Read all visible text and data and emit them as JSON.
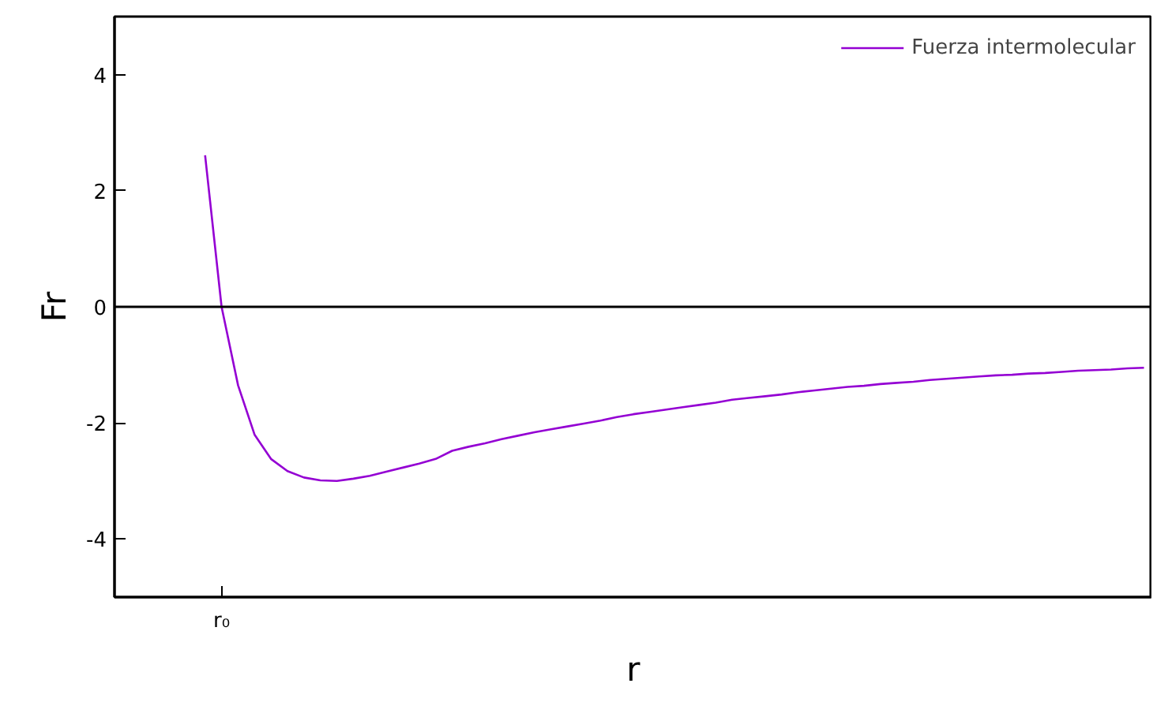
{
  "chart_data": {
    "type": "line",
    "xlabel": "r",
    "ylabel": "Fr",
    "categories": [
      null,
      null,
      null,
      null,
      null,
      null,
      "r₀",
      null,
      null,
      null,
      null,
      null,
      null,
      null,
      null,
      null,
      null,
      null,
      null,
      null,
      null,
      null,
      null,
      null,
      null,
      null,
      null,
      null,
      null,
      null,
      null,
      null,
      null,
      null,
      null,
      null,
      null,
      null,
      null,
      null,
      null,
      null,
      null,
      null,
      null,
      null,
      null,
      null,
      null,
      null,
      null,
      null,
      null,
      null,
      null,
      null,
      null,
      null,
      null,
      null,
      null,
      null,
      null
    ],
    "series": [
      {
        "name": "Fuerza intermolecular",
        "color": "#9400d3",
        "values": [
          null,
          null,
          null,
          null,
          null,
          2.61,
          0.0,
          -1.35,
          -2.2,
          -2.62,
          -2.83,
          -2.94,
          -2.99,
          -3.0,
          -2.96,
          -2.91,
          -2.84,
          -2.77,
          -2.7,
          -2.62,
          -2.48,
          -2.41,
          -2.35,
          -2.28,
          -2.22,
          -2.16,
          -2.11,
          -2.06,
          -2.01,
          -1.96,
          -1.9,
          -1.85,
          -1.81,
          -1.77,
          -1.73,
          -1.69,
          -1.65,
          -1.6,
          -1.57,
          -1.54,
          -1.51,
          -1.47,
          -1.44,
          -1.41,
          -1.38,
          -1.36,
          -1.33,
          -1.31,
          -1.29,
          -1.26,
          -1.24,
          -1.22,
          -1.2,
          -1.18,
          -1.17,
          -1.15,
          -1.14,
          -1.12,
          -1.1,
          -1.09,
          -1.08,
          -1.06,
          -1.05
        ]
      }
    ],
    "ylim": [
      -5,
      5
    ],
    "yticks": [
      -4,
      -2,
      0,
      2,
      4
    ],
    "ref_lines": [
      {
        "axis": "y",
        "value": 0,
        "label": null,
        "color": "#000000"
      }
    ],
    "legend": "top right",
    "grid": false,
    "marker": "none",
    "line_style": "solid"
  }
}
